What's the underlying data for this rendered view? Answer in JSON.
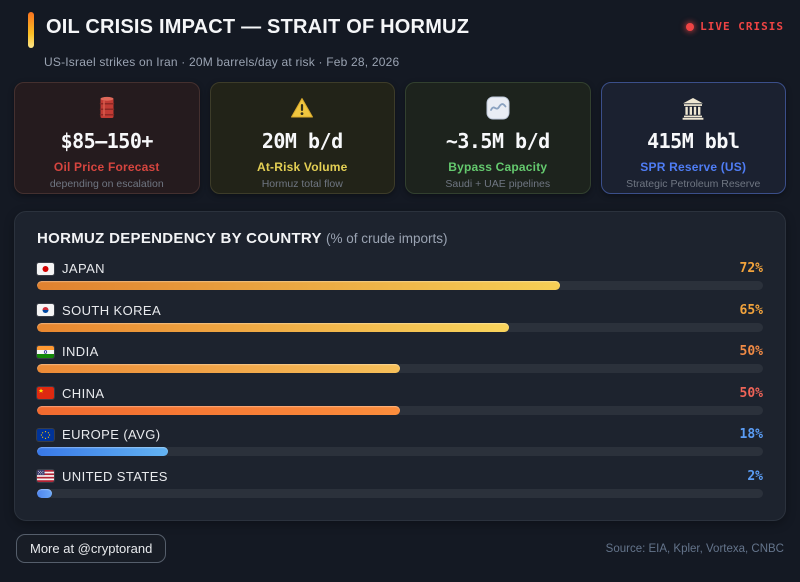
{
  "header": {
    "title": "OIL CRISIS IMPACT — STRAIT OF HORMUZ",
    "live_badge": "LIVE CRISIS",
    "subtitle": "US-Israel strikes on Iran · 20M barrels/day at risk · Feb 28, 2026"
  },
  "stat_cards": [
    {
      "id": "oil-price",
      "icon": "oil-barrel-icon",
      "value": "$85—150+",
      "label": "Oil Price Forecast",
      "sublabel": "depending on escalation",
      "label_color": "#d6453f",
      "bg": "#251b1e",
      "border": "#44302f"
    },
    {
      "id": "at-risk-volume",
      "icon": "warning-icon",
      "value": "20M b/d",
      "label": "At-Risk Volume",
      "sublabel": "Hormuz total flow",
      "label_color": "#e3cf54",
      "bg": "#222318",
      "border": "#3d3c29"
    },
    {
      "id": "bypass-capacity",
      "icon": "pipeline-icon",
      "value": "~3.5M b/d",
      "label": "Bypass Capacity",
      "sublabel": "Saudi + UAE pipelines",
      "label_color": "#64c96e",
      "bg": "#1d231d",
      "border": "#32402f"
    },
    {
      "id": "spr-reserve",
      "icon": "bank-icon",
      "value": "415M bbl",
      "label": "SPR Reserve (US)",
      "sublabel": "Strategic Petroleum Reserve",
      "label_color": "#4f7df5",
      "bg": "#1b2130",
      "border": "#3b4f8a"
    }
  ],
  "chart": {
    "title": "HORMUZ DEPENDENCY BY COUNTRY",
    "subtitle": "(% of crude imports)"
  },
  "chart_data": {
    "type": "bar",
    "orientation": "horizontal",
    "title": "HORMUZ DEPENDENCY BY COUNTRY (% of crude imports)",
    "xlim": [
      0,
      100
    ],
    "grid": false,
    "categories": [
      "JAPAN",
      "SOUTH KOREA",
      "INDIA",
      "CHINA",
      "EUROPE (AVG)",
      "UNITED STATES"
    ],
    "values": [
      72,
      65,
      50,
      50,
      18,
      2
    ],
    "value_labels": [
      "72%",
      "65%",
      "50%",
      "50%",
      "18%",
      "2%"
    ],
    "flags": [
      "jp",
      "kr",
      "in",
      "cn",
      "eu",
      "us"
    ],
    "value_colors": [
      "#f2a33c",
      "#f2a33c",
      "#f08a45",
      "#ef6458",
      "#5b9df5",
      "#5b9df5"
    ],
    "bar_gradients": [
      [
        "#e0812f",
        "#f6cf55"
      ],
      [
        "#e8862f",
        "#f8d45c"
      ],
      [
        "#ec8a36",
        "#f6c05a"
      ],
      [
        "#f26a2f",
        "#fb8d3c"
      ],
      [
        "#3878e8",
        "#63b3f2"
      ],
      [
        "#4f86f0",
        "#6aa7f8"
      ]
    ]
  },
  "footer": {
    "cta": "More at @cryptorand",
    "source": "Source: EIA, Kpler, Vortexa, CNBC"
  }
}
